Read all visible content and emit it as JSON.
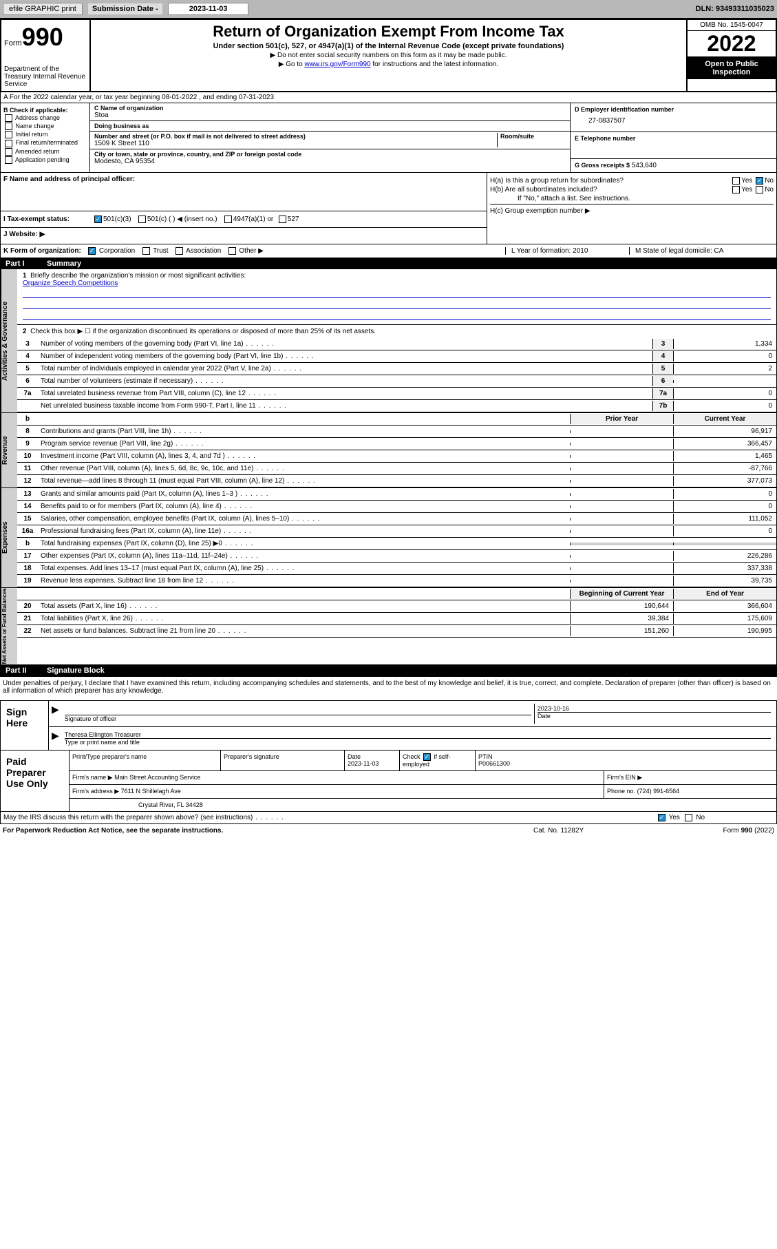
{
  "top": {
    "efile": "efile GRAPHIC print",
    "sub_label": "Submission Date - ",
    "sub_date": "2023-11-03",
    "dln": "DLN: 93493311035023"
  },
  "header": {
    "form": "Form",
    "num": "990",
    "dept": "Department of the Treasury Internal Revenue Service",
    "title": "Return of Organization Exempt From Income Tax",
    "sub": "Under section 501(c), 527, or 4947(a)(1) of the Internal Revenue Code (except private foundations)",
    "note1": "▶ Do not enter social security numbers on this form as it may be made public.",
    "note2_pre": "▶ Go to ",
    "note2_link": "www.irs.gov/Form990",
    "note2_post": " for instructions and the latest information.",
    "omb": "OMB No. 1545-0047",
    "year": "2022",
    "open": "Open to Public Inspection"
  },
  "section_a": "A For the 2022 calendar year, or tax year beginning 08-01-2022   , and ending 07-31-2023",
  "col_b": {
    "hdr": "B Check if applicable:",
    "items": [
      "Address change",
      "Name change",
      "Initial return",
      "Final return/terminated",
      "Amended return",
      "Application pending"
    ]
  },
  "col_c": {
    "name_lbl": "C Name of organization",
    "name": "Stoa",
    "dba_lbl": "Doing business as",
    "dba": "",
    "addr_lbl": "Number and street (or P.O. box if mail is not delivered to street address)",
    "room_lbl": "Room/suite",
    "addr": "1509 K Street 110",
    "city_lbl": "City or town, state or province, country, and ZIP or foreign postal code",
    "city": "Modesto, CA  95354"
  },
  "col_de": {
    "d_lbl": "D Employer identification number",
    "d": "27-0837507",
    "e_lbl": "E Telephone number",
    "e": "",
    "g_lbl": "G Gross receipts $",
    "g": "543,640"
  },
  "f": {
    "lbl": "F Name and address of principal officer:",
    "val": ""
  },
  "h": {
    "ha": "H(a)  Is this a group return for subordinates?",
    "ha_yes": "Yes",
    "ha_no": "No",
    "hb": "H(b)  Are all subordinates included?",
    "hb_note": "If \"No,\" attach a list. See instructions.",
    "hc": "H(c)  Group exemption number ▶"
  },
  "i": {
    "lbl": "I   Tax-exempt status:",
    "opt1": "501(c)(3)",
    "opt2": "501(c) (  ) ◀ (insert no.)",
    "opt3": "4947(a)(1) or",
    "opt4": "527"
  },
  "j": "J   Website: ▶",
  "k": {
    "lbl": "K Form of organization:",
    "opts": [
      "Corporation",
      "Trust",
      "Association",
      "Other ▶"
    ],
    "l": "L Year of formation: 2010",
    "m": "M State of legal domicile: CA"
  },
  "part1": {
    "num": "Part I",
    "title": "Summary",
    "q1": "Briefly describe the organization's mission or most significant activities:",
    "q1_ans": "Organize Speech Competitions",
    "q2": "Check this box ▶ ☐  if the organization discontinued its operations or disposed of more than 25% of its net assets.",
    "rows": [
      {
        "n": "3",
        "d": "Number of voting members of the governing body (Part VI, line 1a)",
        "bn": "3",
        "v": "1,334"
      },
      {
        "n": "4",
        "d": "Number of independent voting members of the governing body (Part VI, line 1b)",
        "bn": "4",
        "v": "0"
      },
      {
        "n": "5",
        "d": "Total number of individuals employed in calendar year 2022 (Part V, line 2a)",
        "bn": "5",
        "v": "2"
      },
      {
        "n": "6",
        "d": "Total number of volunteers (estimate if necessary)",
        "bn": "6",
        "v": ""
      },
      {
        "n": "7a",
        "d": "Total unrelated business revenue from Part VIII, column (C), line 12",
        "bn": "7a",
        "v": "0"
      },
      {
        "n": "",
        "d": "Net unrelated business taxable income from Form 990-T, Part I, line 11",
        "bn": "7b",
        "v": "0"
      }
    ],
    "hdr_b": "b",
    "hdr_prior": "Prior Year",
    "hdr_current": "Current Year",
    "rev": [
      {
        "n": "8",
        "d": "Contributions and grants (Part VIII, line 1h)",
        "p": "",
        "c": "96,917"
      },
      {
        "n": "9",
        "d": "Program service revenue (Part VIII, line 2g)",
        "p": "",
        "c": "366,457"
      },
      {
        "n": "10",
        "d": "Investment income (Part VIII, column (A), lines 3, 4, and 7d )",
        "p": "",
        "c": "1,465"
      },
      {
        "n": "11",
        "d": "Other revenue (Part VIII, column (A), lines 5, 6d, 8c, 9c, 10c, and 11e)",
        "p": "",
        "c": "-87,766"
      },
      {
        "n": "12",
        "d": "Total revenue—add lines 8 through 11 (must equal Part VIII, column (A), line 12)",
        "p": "",
        "c": "377,073"
      }
    ],
    "exp": [
      {
        "n": "13",
        "d": "Grants and similar amounts paid (Part IX, column (A), lines 1–3 )",
        "p": "",
        "c": "0"
      },
      {
        "n": "14",
        "d": "Benefits paid to or for members (Part IX, column (A), line 4)",
        "p": "",
        "c": "0"
      },
      {
        "n": "15",
        "d": "Salaries, other compensation, employee benefits (Part IX, column (A), lines 5–10)",
        "p": "",
        "c": "111,052"
      },
      {
        "n": "16a",
        "d": "Professional fundraising fees (Part IX, column (A), line 11e)",
        "p": "",
        "c": "0"
      },
      {
        "n": "b",
        "d": "Total fundraising expenses (Part IX, column (D), line 25) ▶0",
        "p": "—",
        "c": "—"
      },
      {
        "n": "17",
        "d": "Other expenses (Part IX, column (A), lines 11a–11d, 11f–24e)",
        "p": "",
        "c": "226,286"
      },
      {
        "n": "18",
        "d": "Total expenses. Add lines 13–17 (must equal Part IX, column (A), line 25)",
        "p": "",
        "c": "337,338"
      },
      {
        "n": "19",
        "d": "Revenue less expenses. Subtract line 18 from line 12",
        "p": "",
        "c": "39,735"
      }
    ],
    "hdr_begin": "Beginning of Current Year",
    "hdr_end": "End of Year",
    "net": [
      {
        "n": "20",
        "d": "Total assets (Part X, line 16)",
        "p": "190,644",
        "c": "366,604"
      },
      {
        "n": "21",
        "d": "Total liabilities (Part X, line 26)",
        "p": "39,384",
        "c": "175,609"
      },
      {
        "n": "22",
        "d": "Net assets or fund balances. Subtract line 21 from line 20",
        "p": "151,260",
        "c": "190,995"
      }
    ],
    "vert_labels": [
      "Activities & Governance",
      "Revenue",
      "Expenses",
      "Net Assets or Fund Balances"
    ]
  },
  "part2": {
    "num": "Part II",
    "title": "Signature Block",
    "decl": "Under penalties of perjury, I declare that I have examined this return, including accompanying schedules and statements, and to the best of my knowledge and belief, it is true, correct, and complete. Declaration of preparer (other than officer) is based on all information of which preparer has any knowledge."
  },
  "sign": {
    "lbl": "Sign Here",
    "sig_lbl": "Signature of officer",
    "date": "2023-10-16",
    "date_lbl": "Date",
    "name": "Theresa Ellington Treasurer",
    "name_lbl": "Type or print name and title"
  },
  "prep": {
    "lbl": "Paid Preparer Use Only",
    "r1": {
      "c1_lbl": "Print/Type preparer's name",
      "c1": "",
      "c2_lbl": "Preparer's signature",
      "c2": "",
      "c3_lbl": "Date",
      "c3": "2023-11-03",
      "c4_lbl": "Check",
      "c4_txt": "if self-employed",
      "c5_lbl": "PTIN",
      "c5": "P00661300"
    },
    "r2": {
      "lbl": "Firm's name    ▶",
      "val": "Main Street Accounting Service",
      "ein_lbl": "Firm's EIN ▶",
      "ein": ""
    },
    "r3": {
      "lbl": "Firm's address ▶",
      "val": "7611 N Shillelagh Ave",
      "phone_lbl": "Phone no.",
      "phone": "(724) 991-6564"
    },
    "r4": {
      "val": "Crystal River, FL  34428"
    }
  },
  "discuss": "May the IRS discuss this return with the preparer shown above? (see instructions)",
  "footer": {
    "left": "For Paperwork Reduction Act Notice, see the separate instructions.",
    "mid": "Cat. No. 11282Y",
    "right": "Form 990 (2022)"
  }
}
